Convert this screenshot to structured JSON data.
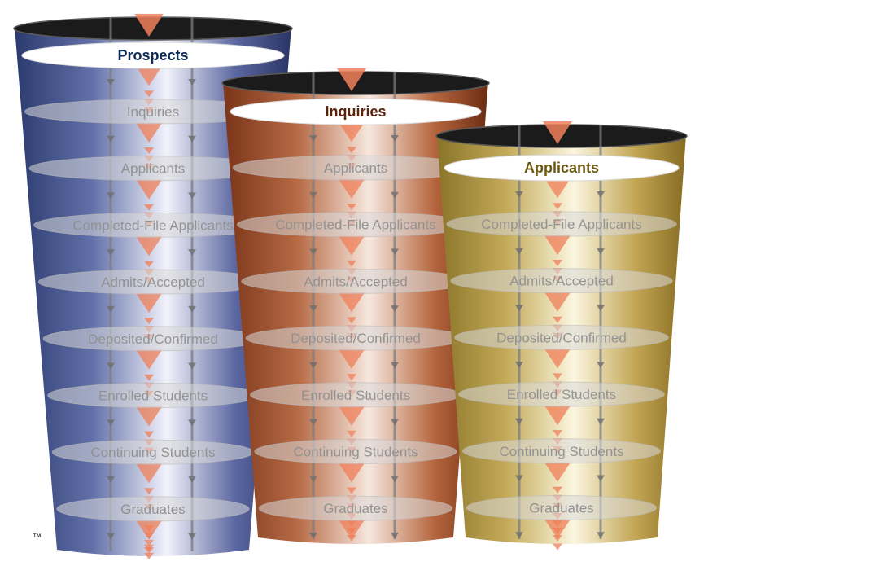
{
  "trademark": "™",
  "funnels": [
    {
      "id": "prospects",
      "title": "Prospects",
      "title_color": "#0e2a57",
      "gradient": [
        "#2b3a6e",
        "#6170a8",
        "#f2f2fb",
        "#5a66a0",
        "#2a3565"
      ],
      "stages": [
        "Inquiries",
        "Applicants",
        "Completed-File Applicants",
        "Admits/Accepted",
        "Deposited/Confirmed",
        "Enrolled Students",
        "Continuing Students",
        "Graduates"
      ]
    },
    {
      "id": "inquiries",
      "title": "Inquiries",
      "title_color": "#5a230c",
      "gradient": [
        "#7a3418",
        "#b66a45",
        "#f7e7de",
        "#b4643c",
        "#6c2d13"
      ],
      "stages": [
        "Applicants",
        "Completed-File Applicants",
        "Admits/Accepted",
        "Deposited/Confirmed",
        "Enrolled Students",
        "Continuing Students",
        "Graduates"
      ]
    },
    {
      "id": "applicants",
      "title": "Applicants",
      "title_color": "#6b5a10",
      "gradient": [
        "#8a7428",
        "#c4ab5a",
        "#fbf6df",
        "#c2a553",
        "#866c22"
      ],
      "stages": [
        "Completed-File Applicants",
        "Admits/Accepted",
        "Deposited/Confirmed",
        "Enrolled Students",
        "Continuing Students",
        "Graduates"
      ]
    }
  ]
}
